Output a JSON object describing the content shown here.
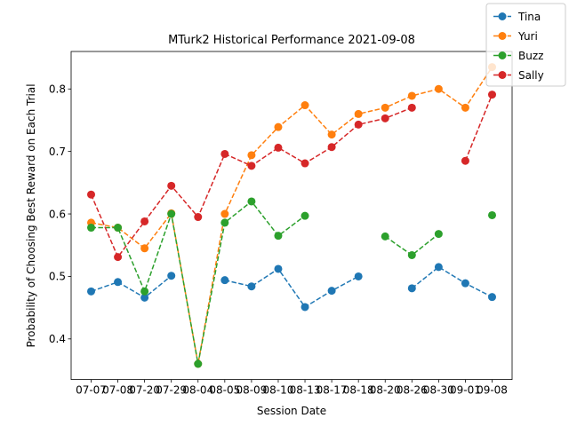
{
  "chart_data": {
    "type": "line",
    "title": "MTurk2 Historical Performance 2021-09-08",
    "xlabel": "Session Date",
    "ylabel": "Probability of Choosing Best Reward on Each Trial",
    "categories": [
      "07-07",
      "07-08",
      "07-20",
      "07-29",
      "08-04",
      "08-05",
      "08-09",
      "08-10",
      "08-13",
      "08-17",
      "08-18",
      "08-20",
      "08-26",
      "08-30",
      "09-01",
      "09-08"
    ],
    "yticks": [
      0.4,
      0.5,
      0.6,
      0.7,
      0.8
    ],
    "ylim": [
      0.335,
      0.86
    ],
    "legend_position": "top-right",
    "line_style": "dashed",
    "marker": "circle",
    "series": [
      {
        "name": "Tina",
        "color": "#1f77b4",
        "values": [
          0.476,
          0.491,
          0.466,
          0.501,
          null,
          0.494,
          0.484,
          0.512,
          0.451,
          0.477,
          0.5,
          null,
          0.481,
          0.515,
          0.489,
          0.467
        ]
      },
      {
        "name": "Yuri",
        "color": "#ff7f0e",
        "values": [
          0.586,
          0.578,
          0.545,
          0.601,
          0.36,
          0.6,
          0.694,
          0.739,
          0.774,
          0.727,
          0.76,
          0.77,
          0.789,
          0.8,
          0.77,
          0.835
        ]
      },
      {
        "name": "Buzz",
        "color": "#2ca02c",
        "values": [
          0.578,
          0.578,
          0.476,
          0.6,
          0.36,
          0.586,
          0.62,
          0.565,
          0.597,
          null,
          null,
          0.564,
          0.534,
          0.568,
          null,
          0.598
        ]
      },
      {
        "name": "Sally",
        "color": "#d62728",
        "values": [
          0.631,
          0.531,
          0.588,
          0.645,
          0.595,
          0.696,
          0.677,
          0.706,
          0.681,
          0.707,
          0.743,
          0.753,
          0.77,
          null,
          0.685,
          0.791
        ]
      }
    ]
  }
}
